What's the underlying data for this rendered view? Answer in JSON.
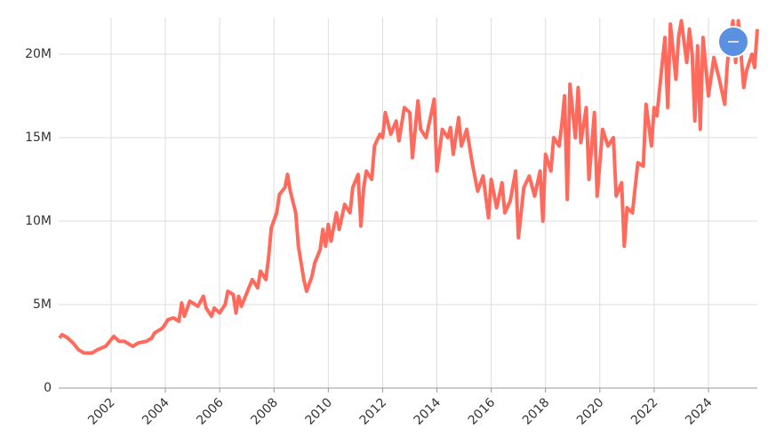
{
  "chart_data": {
    "type": "line",
    "x": [
      2000.1,
      2000.2,
      2000.4,
      2000.6,
      2000.8,
      2001.0,
      2001.3,
      2001.5,
      2001.8,
      2002.0,
      2002.1,
      2002.3,
      2002.5,
      2002.8,
      2003.0,
      2003.3,
      2003.5,
      2003.6,
      2003.9,
      2004.1,
      2004.3,
      2004.5,
      2004.6,
      2004.7,
      2004.9,
      2005.2,
      2005.4,
      2005.5,
      2005.7,
      2005.8,
      2006.0,
      2006.2,
      2006.3,
      2006.5,
      2006.6,
      2006.7,
      2006.8,
      2007.0,
      2007.2,
      2007.4,
      2007.5,
      2007.7,
      2007.8,
      2007.9,
      2008.1,
      2008.2,
      2008.4,
      2008.5,
      2008.6,
      2008.8,
      2008.9,
      2009.1,
      2009.2,
      2009.4,
      2009.5,
      2009.7,
      2009.8,
      2009.9,
      2010.0,
      2010.1,
      2010.3,
      2010.4,
      2010.6,
      2010.8,
      2010.9,
      2011.1,
      2011.2,
      2011.3,
      2011.4,
      2011.6,
      2011.7,
      2011.9,
      2012.0,
      2012.1,
      2012.3,
      2012.5,
      2012.6,
      2012.8,
      2013.0,
      2013.1,
      2013.3,
      2013.4,
      2013.6,
      2013.8,
      2013.9,
      2014.0,
      2014.2,
      2014.4,
      2014.5,
      2014.6,
      2014.8,
      2014.9,
      2015.1,
      2015.3,
      2015.5,
      2015.7,
      2015.9,
      2016.0,
      2016.2,
      2016.4,
      2016.5,
      2016.7,
      2016.9,
      2017.0,
      2017.2,
      2017.4,
      2017.6,
      2017.8,
      2017.9,
      2018.0,
      2018.2,
      2018.3,
      2018.5,
      2018.6,
      2018.7,
      2018.8,
      2018.9,
      2019.1,
      2019.2,
      2019.3,
      2019.5,
      2019.6,
      2019.8,
      2019.9,
      2020.1,
      2020.3,
      2020.5,
      2020.6,
      2020.8,
      2020.9,
      2021.0,
      2021.2,
      2021.3,
      2021.4,
      2021.6,
      2021.7,
      2021.9,
      2022.0,
      2022.1,
      2022.3,
      2022.4,
      2022.5,
      2022.6,
      2022.8,
      2022.9,
      2023.0,
      2023.2,
      2023.3,
      2023.4,
      2023.5,
      2023.6,
      2023.7,
      2023.8,
      2024.0,
      2024.2,
      2024.4,
      2024.6,
      2024.7,
      2024.9,
      2025.0,
      2025.1,
      2025.3,
      2025.4,
      2025.6,
      2025.7,
      2025.8
    ],
    "series": [
      {
        "color": "#ff6a5c",
        "values": [
          3000000,
          3200000,
          3000000,
          2700000,
          2300000,
          2100000,
          2100000,
          2300000,
          2500000,
          2900000,
          3100000,
          2800000,
          2800000,
          2500000,
          2700000,
          2800000,
          3000000,
          3300000,
          3600000,
          4100000,
          4200000,
          4000000,
          5100000,
          4300000,
          5200000,
          4900000,
          5500000,
          4800000,
          4300000,
          4800000,
          4500000,
          5000000,
          5800000,
          5600000,
          4500000,
          5500000,
          4900000,
          5700000,
          6500000,
          6000000,
          7000000,
          6500000,
          7800000,
          9600000,
          10500000,
          11600000,
          12000000,
          12800000,
          11800000,
          10500000,
          8500000,
          6500000,
          5800000,
          6700000,
          7500000,
          8300000,
          9500000,
          8500000,
          9800000,
          8800000,
          10500000,
          9500000,
          11000000,
          10500000,
          12000000,
          12800000,
          9700000,
          12000000,
          13000000,
          12500000,
          14500000,
          15200000,
          15000000,
          16500000,
          15200000,
          16000000,
          14800000,
          16800000,
          16500000,
          13800000,
          17200000,
          15500000,
          15000000,
          16500000,
          17300000,
          13000000,
          15500000,
          15000000,
          15600000,
          14000000,
          16200000,
          14500000,
          15500000,
          13500000,
          11800000,
          12700000,
          10200000,
          12500000,
          10800000,
          12300000,
          10500000,
          11200000,
          13000000,
          9000000,
          12000000,
          12700000,
          11500000,
          13000000,
          10000000,
          14000000,
          13000000,
          15000000,
          14500000,
          15800000,
          17500000,
          11300000,
          18200000,
          15000000,
          18000000,
          14700000,
          16800000,
          12500000,
          16500000,
          11500000,
          15500000,
          14500000,
          15000000,
          11500000,
          12300000,
          8500000,
          10800000,
          10500000,
          12000000,
          13500000,
          13300000,
          17000000,
          14500000,
          16800000,
          16300000,
          19500000,
          21000000,
          16800000,
          21800000,
          18500000,
          21000000,
          22000000,
          19500000,
          21500000,
          20000000,
          16000000,
          20500000,
          15500000,
          21000000,
          17500000,
          19800000,
          18500000,
          17000000,
          19500000,
          22000000,
          19500000,
          22000000,
          18000000,
          19000000,
          20000000,
          19200000,
          21500000
        ]
      }
    ],
    "xlim": [
      2000.07,
      2025.8
    ],
    "xticks": [
      2002,
      2004,
      2006,
      2008,
      2010,
      2012,
      2014,
      2016,
      2018,
      2020,
      2022,
      2024
    ],
    "ylim": [
      0,
      22180000
    ],
    "yticks": [
      0,
      {
        "value": 5000000,
        "label": "5M"
      },
      {
        "value": 10000000,
        "label": "10M"
      },
      {
        "value": 15000000,
        "label": "15M"
      },
      {
        "value": 20000000,
        "label": "20M"
      }
    ],
    "grid": true
  }
}
